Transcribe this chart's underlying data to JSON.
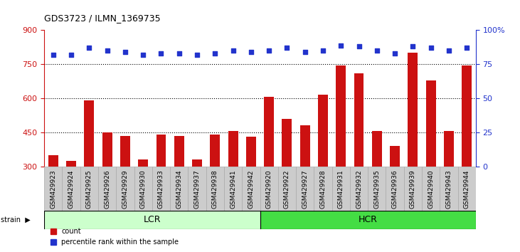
{
  "title": "GDS3723 / ILMN_1369735",
  "samples": [
    "GSM429923",
    "GSM429924",
    "GSM429925",
    "GSM429926",
    "GSM429929",
    "GSM429930",
    "GSM429933",
    "GSM429934",
    "GSM429937",
    "GSM429938",
    "GSM429941",
    "GSM429942",
    "GSM429920",
    "GSM429922",
    "GSM429927",
    "GSM429928",
    "GSM429931",
    "GSM429932",
    "GSM429935",
    "GSM429936",
    "GSM429939",
    "GSM429940",
    "GSM429943",
    "GSM429944"
  ],
  "counts": [
    350,
    325,
    590,
    448,
    435,
    330,
    440,
    435,
    330,
    440,
    455,
    430,
    605,
    510,
    480,
    615,
    745,
    710,
    455,
    390,
    800,
    680,
    455,
    745
  ],
  "percentile_ranks": [
    82,
    82,
    87,
    85,
    84,
    82,
    83,
    83,
    82,
    83,
    85,
    84,
    85,
    87,
    84,
    85,
    89,
    88,
    85,
    83,
    88,
    87,
    85,
    87
  ],
  "group_labels": [
    "LCR",
    "HCR"
  ],
  "group_sizes": [
    12,
    12
  ],
  "ylim_left": [
    300,
    900
  ],
  "ylim_right": [
    0,
    100
  ],
  "yticks_left": [
    300,
    450,
    600,
    750,
    900
  ],
  "yticks_right": [
    0,
    25,
    50,
    75,
    100
  ],
  "hgrid_vals": [
    450,
    600,
    750
  ],
  "bar_color": "#cc1111",
  "dot_color": "#2233cc",
  "lcr_color": "#ccffcc",
  "hcr_color": "#44dd44",
  "plot_bg": "#ffffff",
  "xlabel_bg": "#cccccc",
  "left_axis_color": "#cc1111",
  "right_axis_color": "#2233cc"
}
